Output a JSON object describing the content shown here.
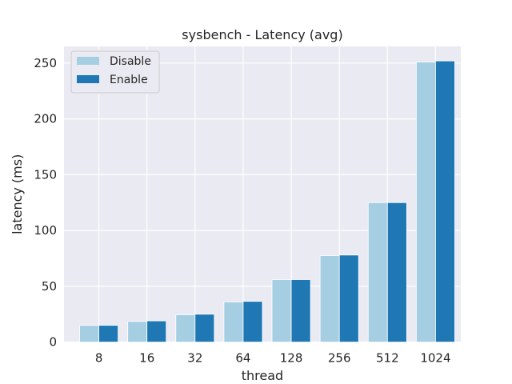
{
  "chart_data": {
    "type": "bar",
    "title": "sysbench - Latency (avg)",
    "xlabel": "thread",
    "ylabel": "latency (ms)",
    "categories": [
      "8",
      "16",
      "32",
      "64",
      "128",
      "256",
      "512",
      "1024"
    ],
    "series": [
      {
        "name": "Disable",
        "color": "#a6cee3",
        "values": [
          15,
          18.5,
          24.5,
          36,
          56,
          77.5,
          125,
          251
        ]
      },
      {
        "name": "Enable",
        "color": "#1f78b4",
        "values": [
          15,
          19,
          25,
          36.5,
          56,
          78,
          125,
          252
        ]
      }
    ],
    "yticks": [
      0,
      50,
      100,
      150,
      200,
      250
    ],
    "ylim": [
      0,
      265
    ],
    "grid": true,
    "legend_position": "top-left",
    "background_color": "#eaeaf2",
    "grid_color": "#ffffff"
  }
}
